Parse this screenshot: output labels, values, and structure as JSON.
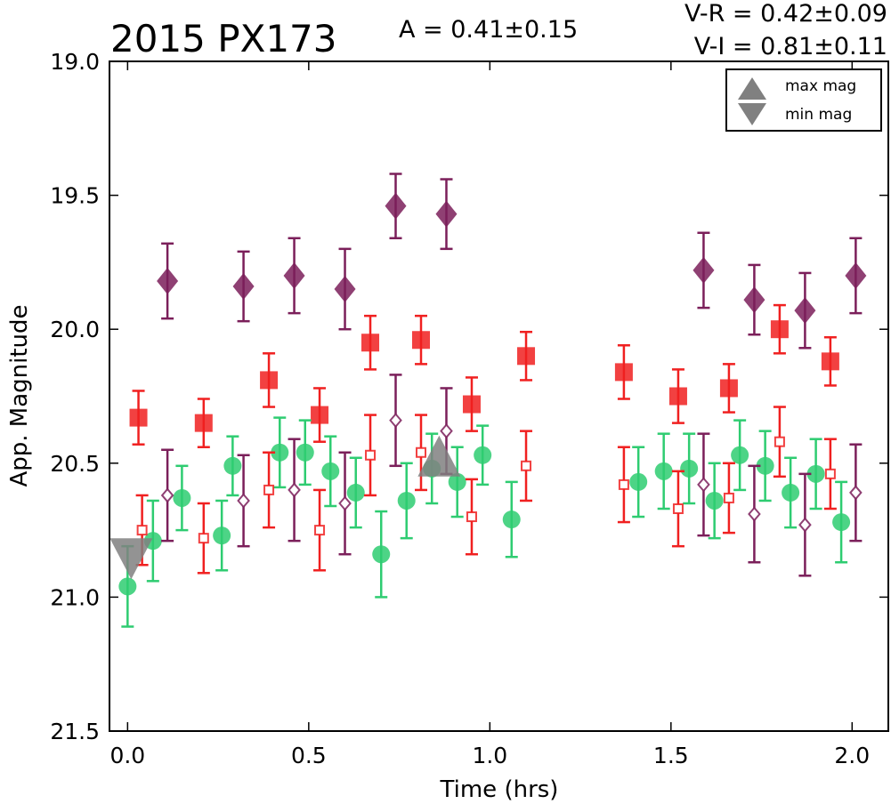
{
  "chart_data": {
    "type": "scatter",
    "title": "2015 PX173",
    "amplitude_label": "A  = 0.41±0.15",
    "color_labels": [
      "V-R = 0.42±0.09",
      "V-I  = 0.81±0.11"
    ],
    "xlabel": "Time (hrs)",
    "ylabel": "App. Magnitude",
    "xlim": [
      -0.05,
      2.1
    ],
    "ylim": [
      21.5,
      19.0
    ],
    "y_inverted": true,
    "xticks": [
      "0.0",
      "0.5",
      "1.0",
      "1.5",
      "2.0"
    ],
    "yticks": [
      "19.0",
      "19.5",
      "20.0",
      "20.5",
      "21.0",
      "21.5"
    ],
    "grid": false,
    "legend": {
      "position": "top-right",
      "entries": [
        {
          "marker": "triangle-up",
          "label": "max mag",
          "color": "#808080"
        },
        {
          "marker": "triangle-down",
          "label": "min mag",
          "color": "#808080"
        }
      ]
    },
    "markers": [
      {
        "kind": "max",
        "x": 0.86,
        "y": 20.49
      },
      {
        "kind": "min",
        "x": 0.01,
        "y": 20.84
      }
    ],
    "colors": {
      "green": "#2ecc71",
      "red": "#f02020",
      "purple": "#7b1f5a",
      "marker_gray": "#808080"
    },
    "series": [
      {
        "marker": "filled-diamond",
        "color": "#7b1f5a",
        "x": [
          0.11,
          0.32,
          0.46,
          0.6,
          0.74,
          0.88,
          1.59,
          1.73,
          1.87,
          2.01
        ],
        "y": [
          19.82,
          19.84,
          19.8,
          19.85,
          19.54,
          19.57,
          19.78,
          19.89,
          19.93,
          19.8
        ],
        "err": [
          0.14,
          0.13,
          0.14,
          0.15,
          0.12,
          0.13,
          0.14,
          0.13,
          0.14,
          0.14
        ]
      },
      {
        "marker": "filled-square",
        "color": "#f02020",
        "x": [
          0.03,
          0.21,
          0.39,
          0.53,
          0.67,
          0.81,
          0.95,
          1.1,
          1.37,
          1.52,
          1.66,
          1.8,
          1.94
        ],
        "y": [
          20.33,
          20.35,
          20.19,
          20.32,
          20.05,
          20.04,
          20.28,
          20.1,
          20.16,
          20.25,
          20.22,
          20.0,
          20.12
        ],
        "err": [
          0.1,
          0.09,
          0.1,
          0.1,
          0.1,
          0.09,
          0.1,
          0.09,
          0.1,
          0.1,
          0.09,
          0.09,
          0.09
        ]
      },
      {
        "marker": "filled-circle",
        "color": "#2ecc71",
        "x": [
          0.0,
          0.07,
          0.15,
          0.26,
          0.29,
          0.42,
          0.49,
          0.56,
          0.63,
          0.7,
          0.77,
          0.84,
          0.91,
          0.98,
          1.06,
          1.41,
          1.48,
          1.55,
          1.62,
          1.69,
          1.76,
          1.83,
          1.9,
          1.97
        ],
        "y": [
          20.96,
          20.79,
          20.63,
          20.77,
          20.51,
          20.46,
          20.46,
          20.53,
          20.61,
          20.84,
          20.64,
          20.52,
          20.57,
          20.47,
          20.71,
          20.57,
          20.53,
          20.52,
          20.64,
          20.47,
          20.51,
          20.61,
          20.54,
          20.72
        ],
        "err": [
          0.15,
          0.15,
          0.12,
          0.13,
          0.11,
          0.13,
          0.12,
          0.13,
          0.13,
          0.16,
          0.14,
          0.13,
          0.13,
          0.11,
          0.14,
          0.13,
          0.14,
          0.13,
          0.14,
          0.13,
          0.13,
          0.13,
          0.13,
          0.15
        ]
      },
      {
        "marker": "open-square",
        "color": "#f02020",
        "x": [
          0.04,
          0.21,
          0.39,
          0.53,
          0.67,
          0.81,
          0.95,
          1.1,
          1.37,
          1.52,
          1.66,
          1.8,
          1.94
        ],
        "y": [
          20.75,
          20.78,
          20.6,
          20.75,
          20.47,
          20.46,
          20.7,
          20.51,
          20.58,
          20.67,
          20.63,
          20.42,
          20.54
        ],
        "err": [
          0.13,
          0.13,
          0.14,
          0.15,
          0.15,
          0.14,
          0.14,
          0.13,
          0.14,
          0.14,
          0.13,
          0.13,
          0.13
        ]
      },
      {
        "marker": "open-diamond",
        "color": "#7b1f5a",
        "x": [
          0.11,
          0.32,
          0.46,
          0.6,
          0.74,
          0.88,
          1.59,
          1.73,
          1.87,
          2.01
        ],
        "y": [
          20.62,
          20.64,
          20.6,
          20.65,
          20.34,
          20.38,
          20.58,
          20.69,
          20.73,
          20.61
        ],
        "err": [
          0.17,
          0.17,
          0.19,
          0.19,
          0.17,
          0.16,
          0.19,
          0.18,
          0.19,
          0.18
        ]
      }
    ]
  }
}
